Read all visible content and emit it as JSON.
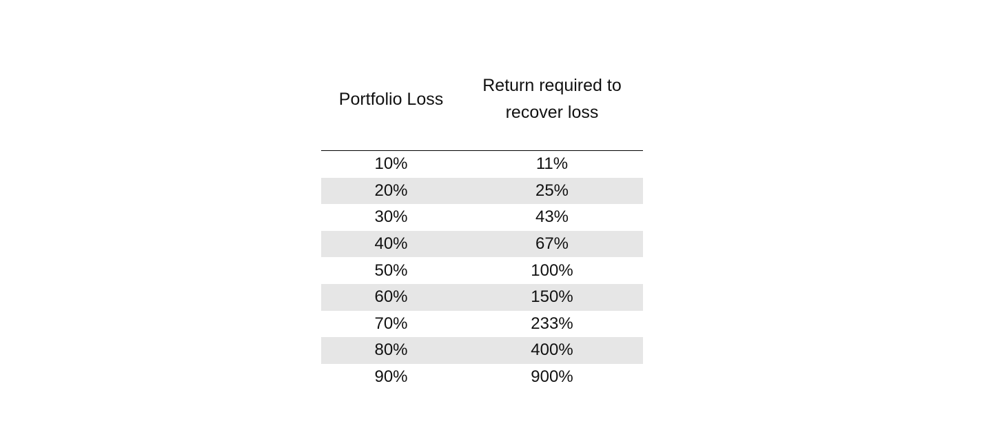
{
  "table": {
    "headers": [
      "Portfolio Loss",
      "Return required to recover loss"
    ],
    "rows": [
      [
        "10%",
        "11%"
      ],
      [
        "20%",
        "25%"
      ],
      [
        "30%",
        "43%"
      ],
      [
        "40%",
        "67%"
      ],
      [
        "50%",
        "100%"
      ],
      [
        "60%",
        "150%"
      ],
      [
        "70%",
        "233%"
      ],
      [
        "80%",
        "400%"
      ],
      [
        "90%",
        "900%"
      ]
    ],
    "colors": {
      "stripe": "#e6e6e6",
      "rule": "#000000",
      "background": "#ffffff"
    }
  }
}
